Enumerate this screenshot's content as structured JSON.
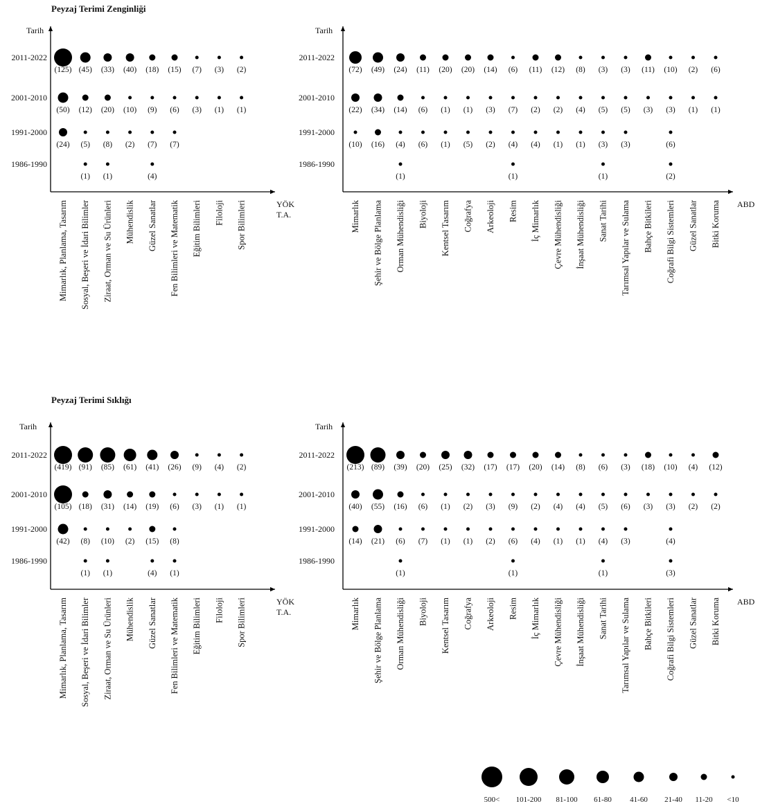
{
  "figure": {
    "legend": {
      "items": [
        {
          "label": "500<",
          "level": 7
        },
        {
          "label": "101-200",
          "level": 6
        },
        {
          "label": "81-100",
          "level": 5
        },
        {
          "label": "61-80",
          "level": 4
        },
        {
          "label": "41-60",
          "level": 3
        },
        {
          "label": "21-40",
          "level": 2
        },
        {
          "label": "11-20",
          "level": 1
        },
        {
          "label": "<10",
          "level": 0
        }
      ]
    },
    "sections": [
      {
        "title": "Peyzaj Terimi Zenginliği"
      },
      {
        "title": "Peyzaj Terimi Sıklığı"
      }
    ]
  },
  "chart_data": [
    {
      "type": "scatter",
      "section": "Peyzaj Terimi Zenginliği",
      "ylabel": "Tarih",
      "xlabel": "YÖK T.A.",
      "rows": [
        "2011-2022",
        "2001-2010",
        "1991-2000",
        "1986-1990"
      ],
      "categories": [
        "Mimarlık, Planlama, Tasarım",
        "Sosyal, Beşeri ve İdari Bilimler",
        "Ziraat, Orman ve Su Ürünleri",
        "Mühendislik",
        "Güzel Sanatlar",
        "Fen Bilimleri ve Matematik",
        "Eğitim Bilimleri",
        "Filoloji",
        "Spor Bilimleri"
      ],
      "values": [
        [
          125,
          45,
          33,
          40,
          18,
          15,
          7,
          3,
          2
        ],
        [
          50,
          12,
          20,
          10,
          9,
          6,
          3,
          1,
          1
        ],
        [
          24,
          5,
          8,
          2,
          7,
          7,
          null,
          null,
          null
        ],
        [
          null,
          1,
          1,
          null,
          4,
          null,
          null,
          null,
          null
        ]
      ]
    },
    {
      "type": "scatter",
      "section": "Peyzaj Terimi Zenginliği",
      "ylabel": "Tarih",
      "xlabel": "ABD",
      "rows": [
        "2011-2022",
        "2001-2010",
        "1991-2000",
        "1986-1990"
      ],
      "categories": [
        "Mimarlık",
        "Şehir ve Bölge Planlama",
        "Orman Mühendisliği",
        "Biyoloji",
        "Kentsel Tasarım",
        "Coğrafya",
        "Arkeoloji",
        "Resim",
        "İç Mimarlık",
        "Çevre Mühendisliği",
        "İnşaat Mühendisliği",
        "Sanat Tarihi",
        "Tarımsal Yapılar ve Sulama",
        "Bahçe Bitkileri",
        "Coğrafi Bilgi Sistemleri",
        "Güzel Sanatlar",
        "Bitki Koruma"
      ],
      "values": [
        [
          72,
          49,
          24,
          11,
          20,
          20,
          14,
          6,
          11,
          12,
          8,
          3,
          3,
          11,
          10,
          2,
          6
        ],
        [
          22,
          34,
          14,
          6,
          1,
          1,
          3,
          7,
          2,
          2,
          4,
          5,
          5,
          3,
          3,
          1,
          1
        ],
        [
          10,
          16,
          4,
          6,
          1,
          5,
          2,
          4,
          4,
          1,
          1,
          3,
          3,
          null,
          6,
          null,
          null
        ],
        [
          null,
          null,
          1,
          null,
          null,
          null,
          null,
          1,
          null,
          null,
          null,
          1,
          null,
          null,
          2,
          null,
          null
        ]
      ]
    },
    {
      "type": "scatter",
      "section": "Peyzaj Terimi Sıklığı",
      "ylabel": "Tarih",
      "xlabel": "YÖK T.A.",
      "rows": [
        "2011-2022",
        "2001-2010",
        "1991-2000",
        "1986-1990"
      ],
      "categories": [
        "Mimarlık, Planlama, Tasarım",
        "Sosyal, Beşeri ve İdari Bilimler",
        "Ziraat, Orman ve Su Ürünleri",
        "Mühendislik",
        "Güzel Sanatlar",
        "Fen Bilimleri ve Matematik",
        "Eğitim Bilimleri",
        "Filoloji",
        "Spor Bilimleri"
      ],
      "values": [
        [
          419,
          91,
          85,
          61,
          41,
          26,
          9,
          4,
          2
        ],
        [
          105,
          18,
          31,
          14,
          19,
          6,
          3,
          1,
          1
        ],
        [
          42,
          8,
          10,
          2,
          15,
          8,
          null,
          null,
          null
        ],
        [
          null,
          1,
          1,
          null,
          4,
          1,
          null,
          null,
          null
        ]
      ]
    },
    {
      "type": "scatter",
      "section": "Peyzaj Terimi Sıklığı",
      "ylabel": "Tarih",
      "xlabel": "ABD",
      "rows": [
        "2011-2022",
        "2001-2010",
        "1991-2000",
        "1986-1990"
      ],
      "categories": [
        "Mimarlık",
        "Şehir ve Bölge Planlama",
        "Orman Mühendisliği",
        "Biyoloji",
        "Kentsel Tasarım",
        "Coğrafya",
        "Arkeoloji",
        "Resim",
        "İç Mimarlık",
        "Çevre Mühendisliği",
        "İnşaat Mühendisliği",
        "Sanat Tarihi",
        "Tarımsal Yapılar ve Sulama",
        "Bahçe Bitkileri",
        "Coğrafi Bilgi Sistemleri",
        "Güzel Sanatlar",
        "Bitki Koruma"
      ],
      "values": [
        [
          213,
          89,
          39,
          20,
          25,
          32,
          17,
          17,
          20,
          14,
          8,
          6,
          3,
          18,
          10,
          4,
          12
        ],
        [
          40,
          55,
          16,
          6,
          1,
          2,
          3,
          9,
          2,
          4,
          4,
          5,
          6,
          3,
          3,
          2,
          2
        ],
        [
          14,
          21,
          6,
          7,
          1,
          1,
          2,
          6,
          4,
          1,
          1,
          4,
          3,
          null,
          4,
          null,
          null
        ],
        [
          null,
          null,
          1,
          null,
          null,
          null,
          null,
          1,
          null,
          null,
          null,
          1,
          null,
          null,
          3,
          null,
          null
        ]
      ]
    }
  ]
}
